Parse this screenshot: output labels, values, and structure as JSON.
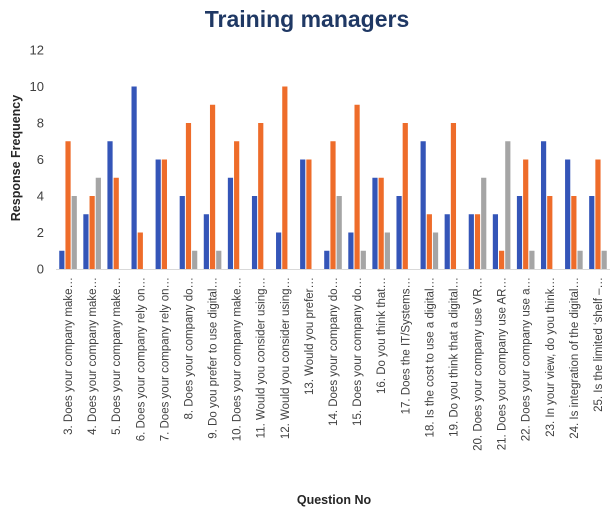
{
  "chart_data": {
    "type": "bar",
    "title": "Training managers",
    "xlabel": "Question No",
    "ylabel": "Response Frequency",
    "ylim": [
      0,
      12
    ],
    "yticks": [
      0,
      2,
      4,
      6,
      8,
      10,
      12
    ],
    "grid": false,
    "legend": "none",
    "categories": [
      "3. Does your company make…",
      "4. Does your company make…",
      "5. Does your company make…",
      "6. Does your company rely on…",
      "7. Does your company rely on…",
      "8. Does your company do…",
      "9. Do you prefer to use digital…",
      "10. Does your company make…",
      "11. Would you consider using…",
      "12. Would you consider using…",
      "13. Would you prefer…",
      "14. Does your company do…",
      "15. Does your company do…",
      "16. Do you think that…",
      "17. Does the IT/Systems…",
      "18. Is the cost to use a digital…",
      "19. Do you think that a digital…",
      "20. Does your company use VR…",
      "21. Does your company use AR…",
      "22. Does your company use a…",
      "23. In your view, do you think…",
      "24. Is integration of the digital…",
      "25. Is the limited ‘shelf –…"
    ],
    "series": [
      {
        "color": "#3455b8",
        "values": [
          1,
          3,
          7,
          10,
          6,
          4,
          3,
          5,
          4,
          2,
          6,
          1,
          2,
          5,
          4,
          7,
          3,
          3,
          3,
          4,
          7,
          6,
          4
        ]
      },
      {
        "color": "#ee6c2a",
        "values": [
          7,
          4,
          5,
          2,
          6,
          8,
          9,
          7,
          8,
          10,
          6,
          7,
          9,
          5,
          8,
          3,
          8,
          3,
          1,
          6,
          4,
          4,
          6
        ]
      },
      {
        "color": "#a5a5a5",
        "values": [
          4,
          5,
          0,
          0,
          0,
          1,
          1,
          0,
          0,
          0,
          0,
          4,
          1,
          2,
          0,
          2,
          0,
          5,
          7,
          1,
          0,
          1,
          1
        ]
      }
    ]
  }
}
